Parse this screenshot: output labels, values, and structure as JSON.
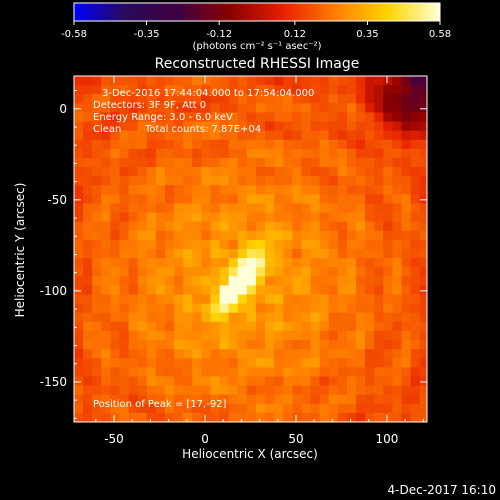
{
  "chart_data": {
    "type": "heatmap",
    "title": "Reconstructed RHESSI Image",
    "xlabel": "Heliocentric X (arcsec)",
    "ylabel": "Heliocentric Y (arcsec)",
    "xlim": [
      -72,
      122
    ],
    "ylim": [
      -172,
      18
    ],
    "xticks": [
      -50,
      0,
      50,
      100
    ],
    "yticks": [
      0,
      -50,
      -100,
      -150
    ],
    "colorbar": {
      "min": -0.58,
      "max": 0.58,
      "ticks": [
        "-0.58",
        "-0.35",
        "-0.12",
        "0.12",
        "0.35",
        "0.58"
      ],
      "unit_label": "(photons cm⁻² s⁻¹ asec⁻²)",
      "colors": [
        "#0000ff",
        "#2a0a5a",
        "#400040",
        "#8a0000",
        "#e82000",
        "#ff7d00",
        "#ffd400",
        "#ffffd8"
      ]
    },
    "annotations": {
      "time_range": "3-Dec-2016 17:44:04.000 to 17:54:04.000",
      "detectors": "Detectors: 3F 9F, Att 0",
      "energy_range": "Energy Range: 3.0 - 6.0 keV",
      "method": "Clean",
      "total_counts": "Total counts: 7.87E+04",
      "peak": "Position of Peak = [17,-92]"
    },
    "source": {
      "peak_x": 17,
      "peak_y": -92,
      "peak_value": 0.58,
      "orientation_deg": 55,
      "background_level": 0.2
    },
    "footer_date": "4-Dec-2017 16:10"
  }
}
